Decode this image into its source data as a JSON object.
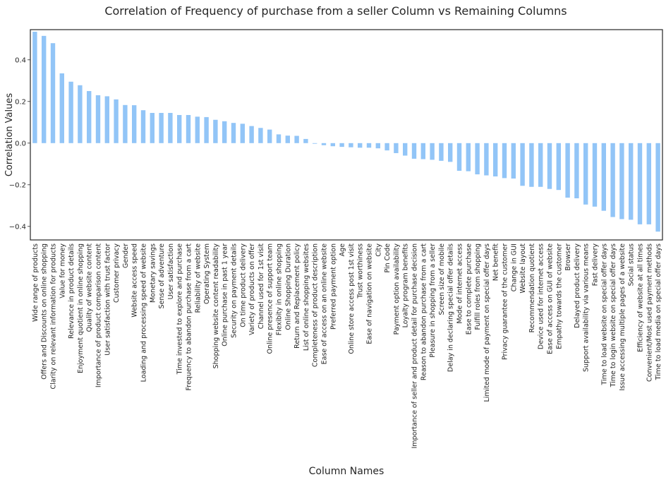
{
  "chart_data": {
    "type": "bar",
    "title": "Correlation of Frequency of purchase from a seller Column vs Remaining Columns",
    "xlabel": "Column Names",
    "ylabel": "Correlation Values",
    "ylim": [
      -0.465,
      0.545
    ],
    "yticks": [
      -0.4,
      -0.2,
      0.0,
      0.2,
      0.4
    ],
    "ytick_labels": [
      "−0.4",
      "−0.2",
      "0.0",
      "0.2",
      "0.4"
    ],
    "grid": false,
    "bar_color": "#92c5f7",
    "categories": [
      "Wide range of products",
      "Offers and Discounts on online shopping",
      "Clarity on relevant information for products",
      "Value for money",
      "Relevance in product details",
      "Enjoyment quotient in online shopping",
      "Quality of website content",
      "Importance of product comparison content",
      "User satisfaction with trust factor",
      "Customer privacy",
      "Gender",
      "Website access speed",
      "Loading and processing speed of website",
      "Monetary savings",
      "Sense of adventure",
      "User satisfaction",
      "Time invested to explore and purchase",
      "Frequency to abandon purchase from a cart",
      "Reliability of website",
      "Operating System",
      "Shopping website content readability",
      "Online purchase in past 1 year",
      "Security on payment details",
      "On time product delivery",
      "Variety of products on offer",
      "Channel used for 1st visit",
      "Online presence of support team",
      "Flexibity in online shopping",
      "Online Shopping Duration",
      "Return and Replacement policy",
      "List of online shopping websites",
      "Completeness of product description",
      "Ease of access on an online website",
      "Preferred payment option",
      "Age",
      "Online store access post 1st visit",
      "Trust worthiness",
      "Ease of navigation on website",
      "City",
      "Pin Code",
      "Payment option availability",
      "Loyalty program benefits",
      "Importance of seller and product detail for purchase decision",
      "Reason to abandon purchase from a cart",
      "Pleasure in shopping from a seller",
      "Screen size of mobile",
      "Delay in declaring special offer details",
      "Mode of internet access",
      "Ease to complete purchase",
      "Fulfill roles from shopping",
      "Limited mode of payment on special offer days",
      "Net benefit",
      "Privacy guarantee of the customer",
      "Change in GUI",
      "Website layout",
      "Recommendation quotient",
      "Device used for internet access",
      "Ease of access on GUI of website",
      "Empathy towards the customer",
      "Browser",
      "Delayed product delivery",
      "Support availability via various means",
      "Fast delivery",
      "Time to load website on special offer days",
      "Time to login website on special offer days",
      "Issue accessing multiple pages of a website",
      "Social status",
      "Efficiency of website at all times",
      "Convenient/Most used payment methods",
      "Time to load media on special offer days"
    ],
    "values": [
      0.535,
      0.515,
      0.48,
      0.335,
      0.295,
      0.278,
      0.25,
      0.23,
      0.225,
      0.21,
      0.183,
      0.182,
      0.158,
      0.145,
      0.145,
      0.145,
      0.135,
      0.135,
      0.127,
      0.125,
      0.112,
      0.105,
      0.097,
      0.093,
      0.082,
      0.073,
      0.065,
      0.042,
      0.036,
      0.035,
      0.02,
      -0.003,
      -0.01,
      -0.015,
      -0.018,
      -0.02,
      -0.022,
      -0.022,
      -0.025,
      -0.035,
      -0.048,
      -0.06,
      -0.075,
      -0.077,
      -0.08,
      -0.085,
      -0.09,
      -0.133,
      -0.135,
      -0.15,
      -0.155,
      -0.16,
      -0.168,
      -0.17,
      -0.205,
      -0.21,
      -0.21,
      -0.22,
      -0.225,
      -0.262,
      -0.265,
      -0.295,
      -0.305,
      -0.325,
      -0.355,
      -0.365,
      -0.368,
      -0.39,
      -0.39,
      -0.425
    ]
  }
}
